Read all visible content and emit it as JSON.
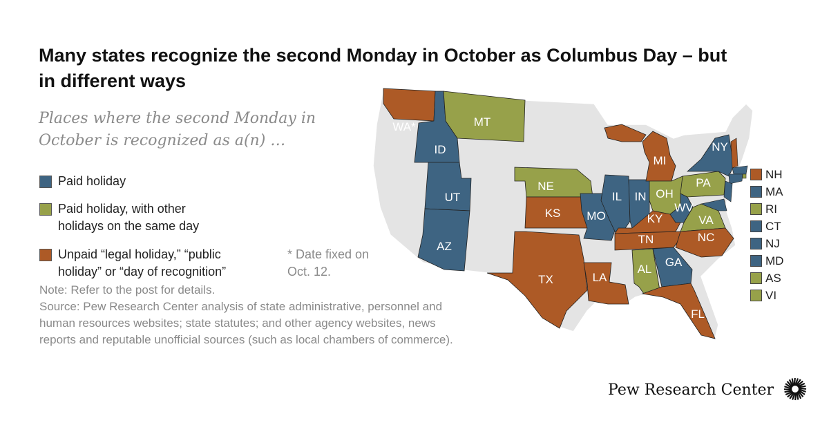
{
  "title": "Many states recognize the second Monday in October as Columbus Day – but in different ways",
  "subtitle": "Places where the second Monday in October is recognized as a(n) …",
  "colors": {
    "paid": "#3e6482",
    "paid_other": "#97a14a",
    "unpaid": "#ad5a26",
    "none": "#e4e4e4"
  },
  "legend": [
    {
      "key": "paid",
      "label": "Paid holiday"
    },
    {
      "key": "paid_other",
      "label": "Paid holiday, with other holidays on the same day"
    },
    {
      "key": "unpaid",
      "label": "Unpaid “legal holiday,” “public holiday” or “day of recognition”"
    }
  ],
  "footnote": "* Date fixed on Oct. 12.",
  "note": "Note: Refer to the post for details.",
  "source": "Source: Pew Research Center analysis of state administrative, personnel and human resources websites; state statutes; and other agency websites, news reports and reputable unofficial sources (such as local chambers of commerce).",
  "states": [
    {
      "id": "WA",
      "label": "WA*",
      "cat": "unpaid"
    },
    {
      "id": "ID",
      "label": "ID",
      "cat": "paid"
    },
    {
      "id": "MT",
      "label": "MT",
      "cat": "paid_other"
    },
    {
      "id": "UT",
      "label": "UT",
      "cat": "paid"
    },
    {
      "id": "AZ",
      "label": "AZ",
      "cat": "paid"
    },
    {
      "id": "NE",
      "label": "NE",
      "cat": "paid_other"
    },
    {
      "id": "KS",
      "label": "KS",
      "cat": "unpaid"
    },
    {
      "id": "TX",
      "label": "TX",
      "cat": "unpaid"
    },
    {
      "id": "MO",
      "label": "MO",
      "cat": "paid"
    },
    {
      "id": "LA",
      "label": "LA",
      "cat": "unpaid"
    },
    {
      "id": "IL",
      "label": "IL",
      "cat": "paid"
    },
    {
      "id": "IN",
      "label": "IN",
      "cat": "paid"
    },
    {
      "id": "MI",
      "label": "MI",
      "cat": "unpaid"
    },
    {
      "id": "OH",
      "label": "OH",
      "cat": "paid_other"
    },
    {
      "id": "KY",
      "label": "KY",
      "cat": "unpaid"
    },
    {
      "id": "TN",
      "label": "TN",
      "cat": "unpaid"
    },
    {
      "id": "AL",
      "label": "AL",
      "cat": "paid_other"
    },
    {
      "id": "GA",
      "label": "GA",
      "cat": "paid"
    },
    {
      "id": "FL",
      "label": "FL",
      "cat": "unpaid"
    },
    {
      "id": "WV",
      "label": "WV",
      "cat": "paid"
    },
    {
      "id": "VA",
      "label": "VA",
      "cat": "paid_other"
    },
    {
      "id": "NC",
      "label": "NC",
      "cat": "unpaid"
    },
    {
      "id": "PA",
      "label": "PA",
      "cat": "paid_other"
    },
    {
      "id": "NY",
      "label": "NY",
      "cat": "paid"
    }
  ],
  "small_states": [
    {
      "id": "NH",
      "cat": "unpaid"
    },
    {
      "id": "MA",
      "cat": "paid"
    },
    {
      "id": "RI",
      "cat": "paid_other"
    },
    {
      "id": "CT",
      "cat": "paid"
    },
    {
      "id": "NJ",
      "cat": "paid"
    },
    {
      "id": "MD",
      "cat": "paid"
    },
    {
      "id": "AS",
      "cat": "paid_other"
    },
    {
      "id": "VI",
      "cat": "paid_other"
    }
  ],
  "brand": "Pew Research Center"
}
